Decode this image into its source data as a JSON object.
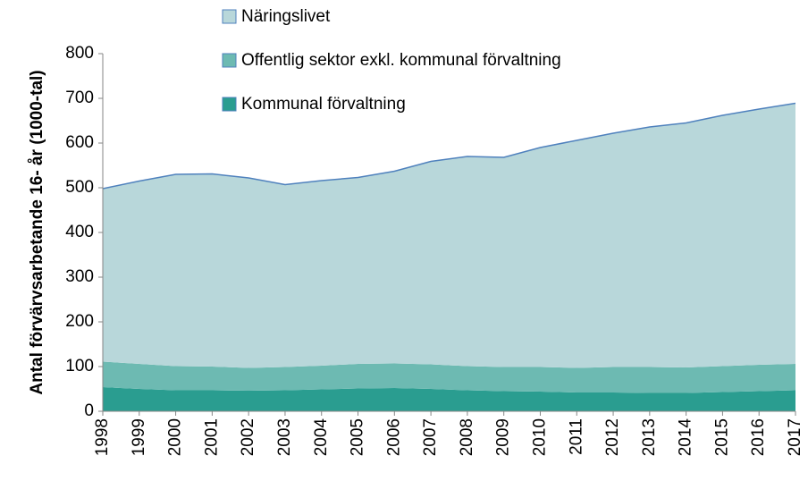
{
  "chart_data": {
    "type": "area",
    "stacked": true,
    "y_label": "Antal förvärvsarbetande 16- år (1000-tal)",
    "categories": [
      "1998",
      "1999",
      "2000",
      "2001",
      "2002",
      "2003",
      "2004",
      "2005",
      "2006",
      "2007",
      "2008",
      "2009",
      "2010",
      "2011",
      "2012",
      "2013",
      "2014",
      "2015",
      "2016",
      "2017"
    ],
    "series": [
      {
        "name": "Kommunal förvaltning",
        "color": "#2a9d90",
        "values": [
          54,
          50,
          47,
          47,
          46,
          47,
          49,
          51,
          52,
          50,
          47,
          45,
          44,
          42,
          42,
          41,
          41,
          43,
          45,
          47
        ]
      },
      {
        "name": "Offentlig sektor exkl. kommunal förvaltning",
        "color": "#6dbab2",
        "values": [
          57,
          56,
          54,
          53,
          51,
          52,
          53,
          55,
          55,
          55,
          54,
          54,
          55,
          55,
          57,
          58,
          57,
          58,
          59,
          59
        ]
      },
      {
        "name": "Näringslivet",
        "color": "#b8d7da",
        "values": [
          387,
          409,
          429,
          431,
          425,
          408,
          414,
          417,
          430,
          454,
          469,
          469,
          491,
          509,
          523,
          537,
          547,
          561,
          572,
          583
        ]
      }
    ],
    "ylim": [
      0,
      800
    ],
    "yticks": [
      0,
      100,
      200,
      300,
      400,
      500,
      600,
      700,
      800
    ]
  }
}
